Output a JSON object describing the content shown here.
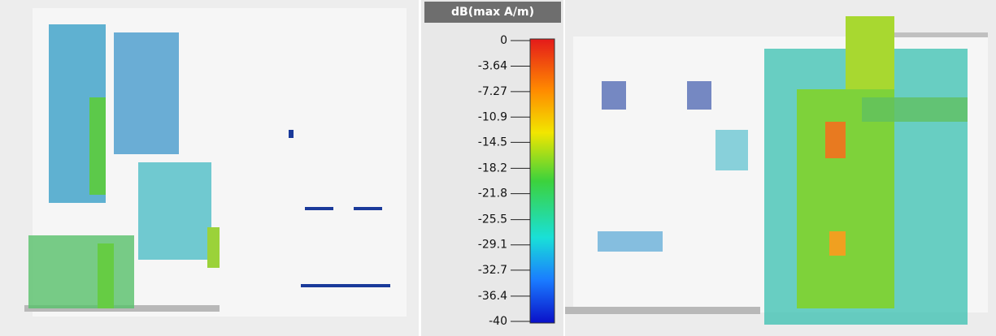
{
  "colorbar": {
    "title": "dB(max A/m)",
    "range": [
      -40,
      0
    ],
    "ticks": [
      0,
      -3.64,
      -7.27,
      -10.9,
      -14.5,
      -18.2,
      -21.8,
      -25.5,
      -29.1,
      -32.7,
      -36.4,
      -40
    ]
  }
}
